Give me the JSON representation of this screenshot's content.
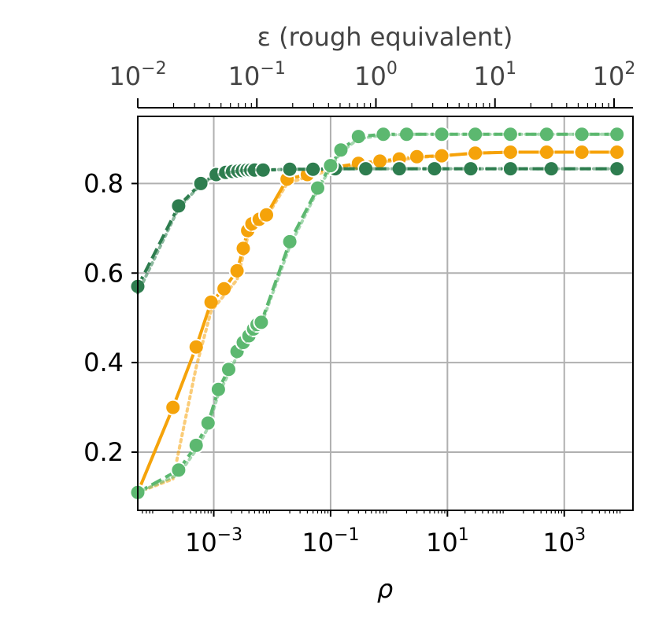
{
  "chart_data": {
    "type": "line",
    "xscale": "log",
    "xlabel": "ρ",
    "xlim": [
      5e-05,
      15000
    ],
    "ylim": [
      0.07,
      0.95
    ],
    "grid": true,
    "x_ticks": [
      {
        "value": 0.001,
        "base": "10",
        "exp": "−3"
      },
      {
        "value": 0.1,
        "base": "10",
        "exp": "−1"
      },
      {
        "value": 10,
        "base": "10",
        "exp": "1"
      },
      {
        "value": 1000,
        "base": "10",
        "exp": "3"
      }
    ],
    "y_ticks": [
      {
        "value": 0.2,
        "label": "0.2"
      },
      {
        "value": 0.4,
        "label": "0.4"
      },
      {
        "value": 0.6,
        "label": "0.6"
      },
      {
        "value": 0.8,
        "label": "0.8"
      }
    ],
    "top_axis": {
      "label": "ε (rough equivalent)",
      "ticks": [
        {
          "value": 0.01,
          "base": "10",
          "exp": "−2"
        },
        {
          "value": 0.1,
          "base": "10",
          "exp": "−1"
        },
        {
          "value": 1,
          "base": "10",
          "exp": "0"
        },
        {
          "value": 10,
          "base": "10",
          "exp": "1"
        },
        {
          "value": 100,
          "base": "10",
          "exp": "2"
        }
      ]
    },
    "series": [
      {
        "color": "#f5a30a",
        "line_style": "solid",
        "x": [
          5e-05,
          0.0002,
          0.0005,
          0.0009,
          0.0015,
          0.0025,
          0.0032,
          0.0038,
          0.0045,
          0.006,
          0.008,
          0.018,
          0.04,
          0.1,
          0.3,
          0.7,
          1.5,
          3,
          8,
          30,
          120,
          500,
          2000,
          8000
        ],
        "y": [
          0.11,
          0.3,
          0.435,
          0.535,
          0.565,
          0.605,
          0.655,
          0.695,
          0.71,
          0.72,
          0.73,
          0.81,
          0.82,
          0.835,
          0.845,
          0.85,
          0.855,
          0.86,
          0.862,
          0.868,
          0.87,
          0.87,
          0.87,
          0.87
        ]
      },
      {
        "color": "#f5a30a",
        "line_style": "dotted",
        "x": [
          5e-05,
          0.0002,
          0.0005,
          0.0009,
          0.0015,
          0.0025,
          0.0032,
          0.0038,
          0.0045,
          0.006,
          0.008,
          0.018,
          0.04,
          0.1,
          0.3,
          0.7,
          1.5,
          3,
          8,
          30,
          120,
          500,
          2000,
          8000
        ],
        "y": [
          0.11,
          0.14,
          0.39,
          0.515,
          0.55,
          0.585,
          0.64,
          0.68,
          0.7,
          0.715,
          0.725,
          0.8,
          0.815,
          0.83,
          0.842,
          0.848,
          0.852,
          0.858,
          0.862,
          0.868,
          0.87,
          0.87,
          0.87,
          0.87
        ]
      },
      {
        "color": "#2e7d4f",
        "line_style": "dashed",
        "x": [
          5e-05,
          0.00025,
          0.0006,
          0.0011,
          0.0016,
          0.0021,
          0.0026,
          0.0031,
          0.0037,
          0.0043,
          0.005,
          0.007,
          0.02,
          0.05,
          0.12,
          0.4,
          1.5,
          6,
          25,
          120,
          600,
          8000
        ],
        "y": [
          0.57,
          0.75,
          0.8,
          0.82,
          0.825,
          0.827,
          0.828,
          0.829,
          0.83,
          0.83,
          0.83,
          0.83,
          0.832,
          0.832,
          0.833,
          0.833,
          0.833,
          0.833,
          0.833,
          0.833,
          0.833,
          0.833
        ]
      },
      {
        "color": "#2e7d4f",
        "line_style": "dotted",
        "x": [
          5e-05,
          0.00025,
          0.0006,
          0.0011,
          0.0016,
          0.0021,
          0.0026,
          0.0031,
          0.0037,
          0.0043,
          0.005,
          0.007,
          0.02,
          0.05,
          0.12,
          0.4,
          1.5,
          6,
          25,
          120,
          600,
          8000
        ],
        "y": [
          0.555,
          0.745,
          0.798,
          0.818,
          0.824,
          0.826,
          0.828,
          0.829,
          0.83,
          0.83,
          0.83,
          0.83,
          0.832,
          0.832,
          0.833,
          0.833,
          0.833,
          0.833,
          0.833,
          0.833,
          0.833,
          0.833
        ]
      },
      {
        "color": "#5cb870",
        "line_style": "dashed",
        "x": [
          5e-05,
          0.00025,
          0.0005,
          0.0008,
          0.0012,
          0.0018,
          0.0025,
          0.0032,
          0.004,
          0.0048,
          0.0055,
          0.0065,
          0.02,
          0.06,
          0.1,
          0.15,
          0.3,
          0.8,
          2,
          8,
          30,
          120,
          500,
          2000,
          8000
        ],
        "y": [
          0.11,
          0.16,
          0.215,
          0.265,
          0.34,
          0.385,
          0.425,
          0.445,
          0.46,
          0.475,
          0.485,
          0.49,
          0.67,
          0.79,
          0.84,
          0.875,
          0.905,
          0.91,
          0.91,
          0.91,
          0.91,
          0.91,
          0.91,
          0.91,
          0.91
        ]
      },
      {
        "color": "#5cb870",
        "line_style": "dotted",
        "x": [
          5e-05,
          0.00025,
          0.0005,
          0.0008,
          0.0012,
          0.0018,
          0.0025,
          0.0032,
          0.004,
          0.0048,
          0.0055,
          0.0065,
          0.02,
          0.06,
          0.1,
          0.15,
          0.3,
          0.8,
          2,
          8,
          30,
          120,
          500,
          2000,
          8000
        ],
        "y": [
          0.11,
          0.15,
          0.205,
          0.255,
          0.33,
          0.375,
          0.415,
          0.44,
          0.455,
          0.47,
          0.48,
          0.485,
          0.66,
          0.785,
          0.835,
          0.87,
          0.9,
          0.908,
          0.91,
          0.91,
          0.91,
          0.91,
          0.91,
          0.91,
          0.91
        ]
      }
    ]
  }
}
